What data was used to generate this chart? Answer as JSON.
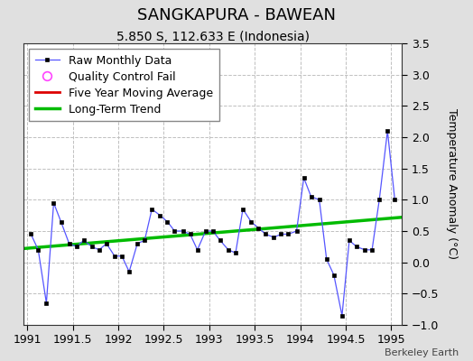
{
  "title": "SANGKAPURA - BAWEAN",
  "subtitle": "5.850 S, 112.633 E (Indonesia)",
  "ylabel": "Temperature Anomaly (°C)",
  "footer": "Berkeley Earth",
  "xlim": [
    1990.96,
    1995.12
  ],
  "ylim": [
    -1.0,
    3.5
  ],
  "yticks": [
    -1.0,
    -0.5,
    0.0,
    0.5,
    1.0,
    1.5,
    2.0,
    2.5,
    3.0,
    3.5
  ],
  "xticks": [
    1991.0,
    1991.5,
    1992.0,
    1992.5,
    1993.0,
    1993.5,
    1994.0,
    1994.5,
    1995.0
  ],
  "raw_x": [
    1991.04,
    1991.12,
    1991.21,
    1991.29,
    1991.37,
    1991.46,
    1991.54,
    1991.62,
    1991.71,
    1991.79,
    1991.87,
    1991.96,
    1992.04,
    1992.12,
    1992.21,
    1992.29,
    1992.37,
    1992.46,
    1992.54,
    1992.62,
    1992.71,
    1992.79,
    1992.87,
    1992.96,
    1993.04,
    1993.12,
    1993.21,
    1993.29,
    1993.37,
    1993.46,
    1993.54,
    1993.62,
    1993.71,
    1993.79,
    1993.87,
    1993.96,
    1994.04,
    1994.12,
    1994.21,
    1994.29,
    1994.37,
    1994.46,
    1994.54,
    1994.62,
    1994.71,
    1994.79,
    1994.87,
    1994.96,
    1995.04
  ],
  "raw_y": [
    0.45,
    0.2,
    -0.65,
    0.95,
    0.65,
    0.3,
    0.25,
    0.35,
    0.25,
    0.2,
    0.3,
    0.1,
    0.1,
    -0.15,
    0.3,
    0.35,
    0.85,
    0.75,
    0.65,
    0.5,
    0.5,
    0.45,
    0.2,
    0.5,
    0.5,
    0.35,
    0.2,
    0.15,
    0.85,
    0.65,
    0.55,
    0.45,
    0.4,
    0.45,
    0.45,
    0.5,
    1.35,
    1.05,
    1.0,
    0.05,
    -0.2,
    -0.85,
    0.35,
    0.25,
    0.2,
    0.2,
    1.0,
    2.1,
    1.0
  ],
  "trend_x": [
    1990.96,
    1995.12
  ],
  "trend_y": [
    0.22,
    0.72
  ],
  "raw_line_color": "#5555ff",
  "raw_marker_color": "#000000",
  "trend_color": "#00bb00",
  "mavg_color": "#dd0000",
  "qc_color": "#ff44ff",
  "bg_color": "#e0e0e0",
  "plot_bg_color": "#ffffff",
  "grid_color": "#c0c0c0",
  "title_fontsize": 13,
  "subtitle_fontsize": 10,
  "label_fontsize": 9,
  "tick_fontsize": 9,
  "legend_fontsize": 9
}
